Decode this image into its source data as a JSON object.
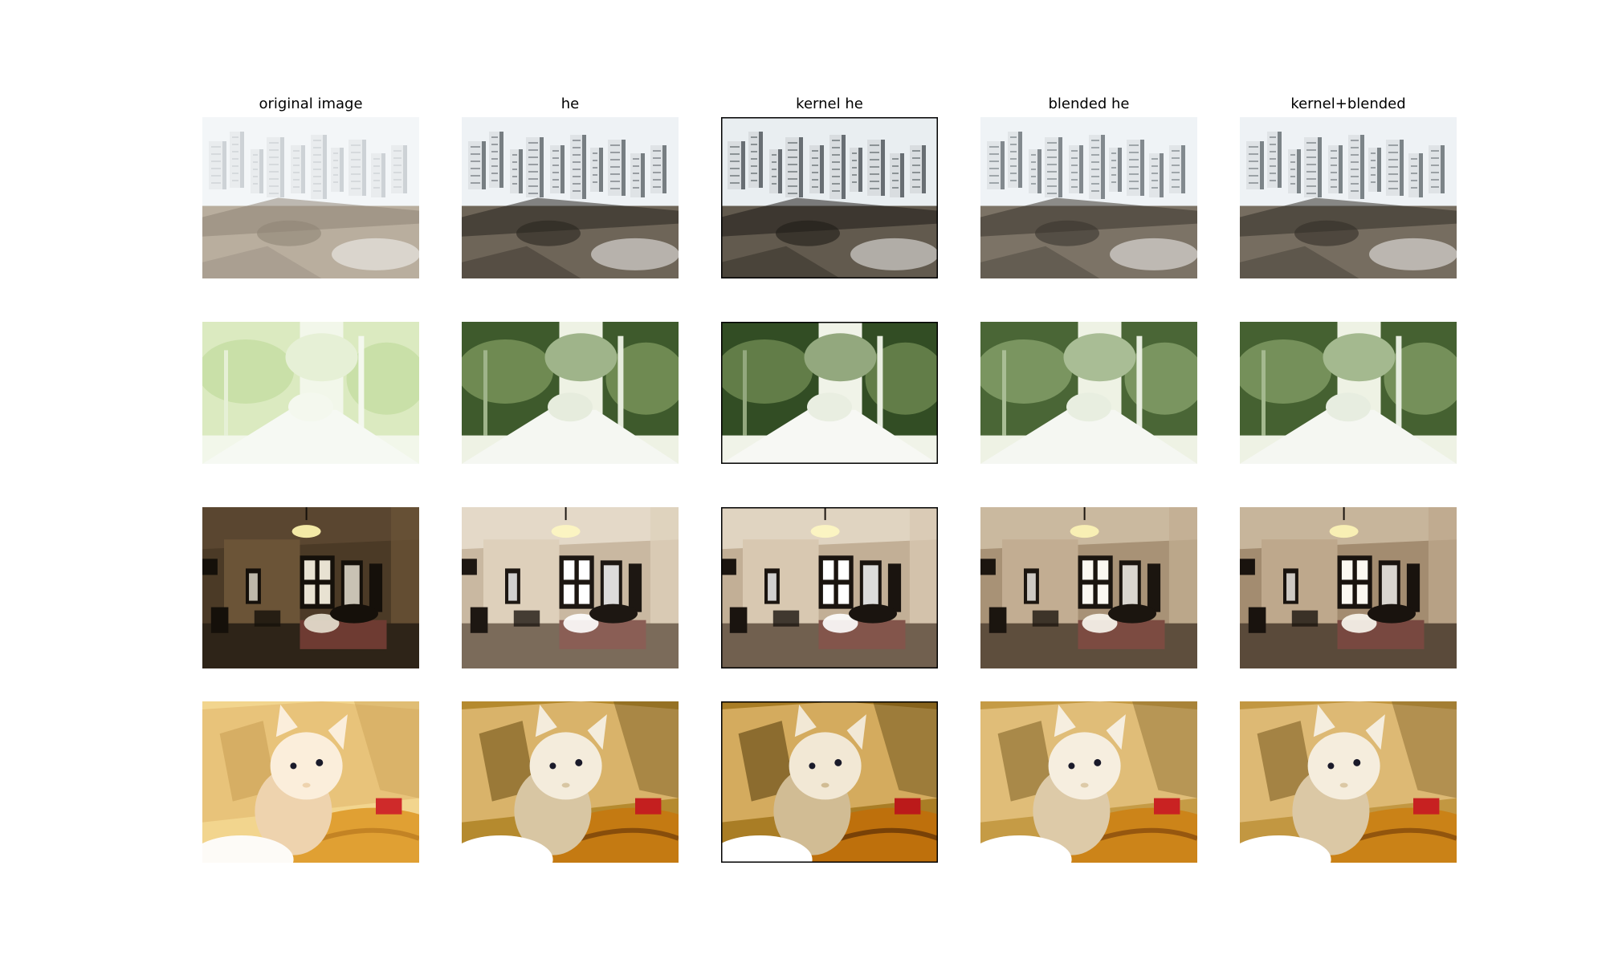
{
  "figure": {
    "columns": [
      {
        "key": "original",
        "title": "original image"
      },
      {
        "key": "he",
        "title": "he"
      },
      {
        "key": "kernel_he",
        "title": "kernel he"
      },
      {
        "key": "blended_he",
        "title": "blended he"
      },
      {
        "key": "kernel_blended",
        "title": "kernel+blended"
      }
    ],
    "rows": [
      {
        "key": "city-aerial"
      },
      {
        "key": "forest-path"
      },
      {
        "key": "bedroom"
      },
      {
        "key": "kitten"
      }
    ]
  }
}
